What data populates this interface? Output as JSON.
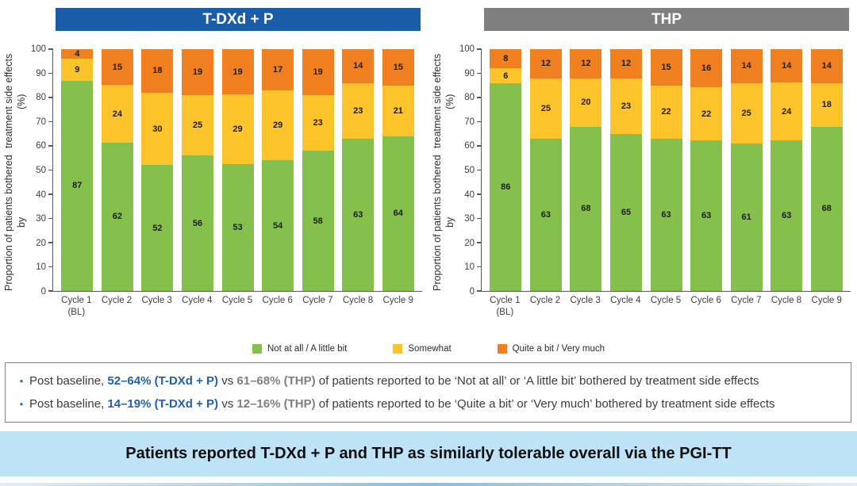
{
  "legend": {
    "items": [
      {
        "label": "Not at all / A little bit",
        "color": "#86c04c"
      },
      {
        "label": "Somewhat",
        "color": "#fdc32b"
      },
      {
        "label": "Quite a bit / Very much",
        "color": "#f0801f"
      }
    ]
  },
  "bullets": [
    {
      "segments": [
        {
          "text": "Post baseline, ",
          "style": "plain"
        },
        {
          "text": "52–64% (T-DXd + P)",
          "style": "blue-bold"
        },
        {
          "text": " vs ",
          "style": "plain"
        },
        {
          "text": "61–68% (THP)",
          "style": "gray-bold"
        },
        {
          "text": " of patients reported to be ‘Not at all’ or ‘A little bit’ bothered by treatment side effects",
          "style": "plain"
        }
      ]
    },
    {
      "segments": [
        {
          "text": "Post baseline, ",
          "style": "plain"
        },
        {
          "text": "14–19% (T-DXd + P)",
          "style": "blue-bold"
        },
        {
          "text": " vs ",
          "style": "plain"
        },
        {
          "text": "12–16% (THP)",
          "style": "gray-bold"
        },
        {
          "text": " of patients reported to be ‘Quite a bit’ or ‘Very much’ bothered by treatment side effects",
          "style": "plain"
        }
      ]
    }
  ],
  "banner": {
    "text": "Patients reported T-DXd + P and THP as similarly tolerable overall via the PGI-TT",
    "bg": "#bfe3f6"
  },
  "chart_data": [
    {
      "type": "bar",
      "stacked": true,
      "title": "T-DXd + P",
      "header_color": "#1b5ca9",
      "ylabel": "Proportion of patients bothered by treatment side effects (%)",
      "ylabel_lines": [
        "Proportion of patients bothered by",
        "treatment side effects (%)"
      ],
      "ylim": [
        0,
        100
      ],
      "ytick_step": 10,
      "grid": false,
      "legend_position": "bottom-shared",
      "categories": [
        {
          "label": "Cycle 1",
          "sub": "(BL)"
        },
        {
          "label": "Cycle 2",
          "sub": ""
        },
        {
          "label": "Cycle 3",
          "sub": ""
        },
        {
          "label": "Cycle 4",
          "sub": ""
        },
        {
          "label": "Cycle 5",
          "sub": ""
        },
        {
          "label": "Cycle 6",
          "sub": ""
        },
        {
          "label": "Cycle 7",
          "sub": ""
        },
        {
          "label": "Cycle 8",
          "sub": ""
        },
        {
          "label": "Cycle 9",
          "sub": ""
        }
      ],
      "series": [
        {
          "name": "Not at all / A little bit",
          "color": "#86c04c",
          "values": [
            87,
            62,
            52,
            56,
            53,
            54,
            58,
            63,
            64
          ]
        },
        {
          "name": "Somewhat",
          "color": "#fdc32b",
          "values": [
            9,
            24,
            30,
            25,
            29,
            29,
            23,
            23,
            21
          ]
        },
        {
          "name": "Quite a bit / Very much",
          "color": "#f0801f",
          "values": [
            4,
            15,
            18,
            19,
            19,
            17,
            19,
            14,
            15
          ]
        }
      ]
    },
    {
      "type": "bar",
      "stacked": true,
      "title": "THP",
      "header_color": "#7f7f7f",
      "ylabel": "Proportion of patients bothered by treatment side effects (%)",
      "ylabel_lines": [
        "Proportion of patients bothered by",
        "treatment side effects (%)"
      ],
      "ylim": [
        0,
        100
      ],
      "ytick_step": 10,
      "grid": false,
      "legend_position": "bottom-shared",
      "categories": [
        {
          "label": "Cycle 1",
          "sub": "(BL)"
        },
        {
          "label": "Cycle 2",
          "sub": ""
        },
        {
          "label": "Cycle 3",
          "sub": ""
        },
        {
          "label": "Cycle 4",
          "sub": ""
        },
        {
          "label": "Cycle 5",
          "sub": ""
        },
        {
          "label": "Cycle 6",
          "sub": ""
        },
        {
          "label": "Cycle 7",
          "sub": ""
        },
        {
          "label": "Cycle 8",
          "sub": ""
        },
        {
          "label": "Cycle 9",
          "sub": ""
        }
      ],
      "series": [
        {
          "name": "Not at all / A little bit",
          "color": "#86c04c",
          "values": [
            86,
            63,
            68,
            65,
            63,
            63,
            61,
            63,
            68
          ]
        },
        {
          "name": "Somewhat",
          "color": "#fdc32b",
          "values": [
            6,
            25,
            20,
            23,
            22,
            22,
            25,
            24,
            18
          ]
        },
        {
          "name": "Quite a bit / Very much",
          "color": "#f0801f",
          "values": [
            8,
            12,
            12,
            12,
            15,
            16,
            14,
            14,
            14
          ]
        }
      ]
    }
  ]
}
